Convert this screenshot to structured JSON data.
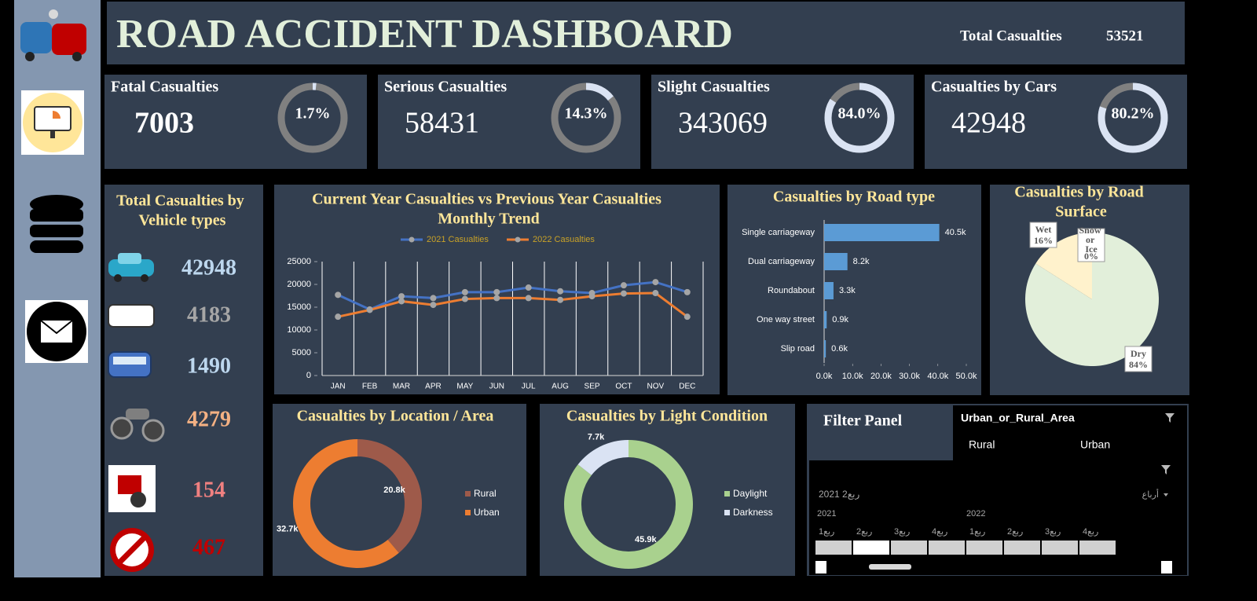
{
  "header": {
    "title": "ROAD ACCIDENT DASHBOARD",
    "total_label": "Total Casualties",
    "total_value": 53521
  },
  "kpis": [
    {
      "title": "Fatal Casualties",
      "value": 7003,
      "percent": 1.7,
      "percent_label": "1.7%"
    },
    {
      "title": "Serious Casualties",
      "value": 58431,
      "percent": 14.3,
      "percent_label": "14.3%"
    },
    {
      "title": "Slight Casualties",
      "value": 343069,
      "percent": 84.0,
      "percent_label": "84.0%"
    },
    {
      "title": "Casualties by Cars",
      "value": 42948,
      "percent": 80.2,
      "percent_label": "80.2%"
    }
  ],
  "vehicles": {
    "title": "Total Casualties by Vehicle types",
    "values": [
      42948,
      4183,
      1490,
      4279,
      154,
      467
    ],
    "colors": [
      "#bdd7ee",
      "#a6a6a6",
      "#bdd7ee",
      "#f4b183",
      "#f08080",
      "#c00000"
    ]
  },
  "chart_data": [
    {
      "type": "line",
      "title": "Current Year Casualties vs Previous Year Casualties Monthly Trend",
      "categories": [
        "JAN",
        "FEB",
        "MAR",
        "APR",
        "MAY",
        "JUN",
        "JUL",
        "AUG",
        "SEP",
        "OCT",
        "NOV",
        "DEC"
      ],
      "series": [
        {
          "name": "2021 Casualties",
          "color": "#4472c4",
          "values": [
            17700,
            14500,
            17400,
            17000,
            18300,
            18300,
            19300,
            18500,
            18100,
            19800,
            20500,
            18300
          ]
        },
        {
          "name": "2022 Casualties",
          "color": "#ed7d31",
          "values": [
            12900,
            14400,
            16300,
            15500,
            16800,
            17000,
            17000,
            16600,
            17400,
            18000,
            18100,
            12900
          ]
        }
      ],
      "ylim": [
        0,
        25000
      ],
      "yticks": [
        0,
        5000,
        10000,
        15000,
        20000,
        25000
      ],
      "grid": true,
      "legend": "top"
    },
    {
      "type": "hbar",
      "title": "Casualties by Road type",
      "categories": [
        "Single carriageway",
        "Dual carriageway",
        "Roundabout",
        "One way street",
        "Slip road"
      ],
      "values": [
        40500,
        8200,
        3300,
        900,
        600
      ],
      "value_labels": [
        "40.5k",
        "8.2k",
        "3.3k",
        "0.9k",
        "0.6k"
      ],
      "color": "#5b9bd5",
      "xlim": [
        0,
        50000
      ],
      "xticks": [
        {
          "value": 0,
          "label": "0.0k"
        },
        {
          "value": 10000,
          "label": "10.0k"
        },
        {
          "value": 20000,
          "label": "20.0k"
        },
        {
          "value": 30000,
          "label": "30.0k"
        },
        {
          "value": 40000,
          "label": "40.0k"
        },
        {
          "value": 50000,
          "label": "50.0k"
        }
      ]
    },
    {
      "type": "pie",
      "title": "Casualties by Road Surface",
      "categories": [
        "Dry",
        "Wet",
        "Snow or Ice"
      ],
      "values": [
        84,
        16,
        0
      ],
      "value_labels": [
        "84%",
        "16%",
        "0%"
      ],
      "colors": [
        "#e2efda",
        "#fff2cc",
        "#ddebf7"
      ]
    },
    {
      "type": "donut",
      "title": "Casualties by Location / Area",
      "categories": [
        "Rural",
        "Urban"
      ],
      "values": [
        20800,
        32700
      ],
      "value_labels": [
        "20.8k",
        "32.7k"
      ],
      "colors": [
        "#9e5a4a",
        "#ed7d31"
      ],
      "legend": "right"
    },
    {
      "type": "donut",
      "title": "Casualties by Light Condition",
      "categories": [
        "Daylight",
        "Darkness"
      ],
      "values": [
        45900,
        7700
      ],
      "value_labels": [
        "45.9k",
        "7.7k"
      ],
      "colors": [
        "#a9d18e",
        "#dae3f3"
      ],
      "legend": "right"
    }
  ],
  "filter_panel": {
    "title": "Filter Panel",
    "slicer_title": "Urban_or_Rural_Area",
    "options": [
      "Rural",
      "Urban"
    ],
    "timeline_selection": "2021 ربع2",
    "timeline_level": "أرباع",
    "years": [
      "2021",
      "2022"
    ],
    "quarters": [
      "ربع1",
      "ربع2",
      "ربع3",
      "ربع4",
      "ربع1",
      "ربع2",
      "ربع3",
      "ربع4"
    ]
  }
}
